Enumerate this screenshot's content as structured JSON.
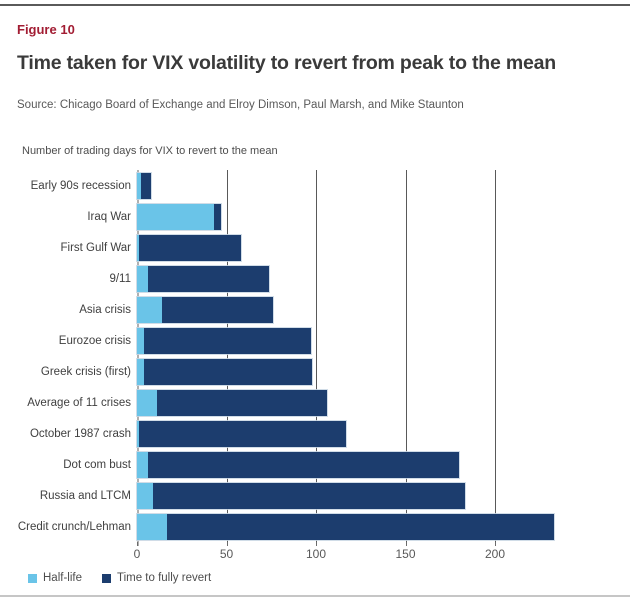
{
  "figure_label": "Figure 10",
  "title": "Time taken for VIX volatility to revert from peak to the mean",
  "source": "Source: Chicago Board of Exchange and Elroy Dimson, Paul Marsh, and Mike Staunton",
  "chart_data": {
    "type": "bar",
    "orientation": "horizontal",
    "overlay": true,
    "subtitle": "Number of trading days for VIX to revert to the mean",
    "categories": [
      "Early 90s recession",
      "Iraq War",
      "First Gulf War",
      "9/11",
      "Asia crisis",
      "Eurozoe crisis",
      "Greek crisis (first)",
      "Average of 11 crises",
      "October 1987 crash",
      "Dot com bust",
      "Russia and LTCM",
      "Credit crunch/Lehman"
    ],
    "series": [
      {
        "name": "Half-life",
        "color": "#6AC4E8",
        "values": [
          2,
          43,
          1,
          6,
          14,
          4,
          4,
          11,
          1,
          6,
          9,
          17
        ]
      },
      {
        "name": "Time to fully revert",
        "color": "#1C3D6E",
        "values": [
          8,
          47,
          58,
          74,
          76,
          97,
          98,
          106,
          117,
          180,
          183,
          233
        ]
      }
    ],
    "x_ticks": [
      0,
      50,
      100,
      150,
      200
    ],
    "xlim": [
      0,
      275
    ],
    "grid": "vertical",
    "legend_position": "bottom-left"
  },
  "legend": [
    {
      "label": "Half-life",
      "color": "#6AC4E8"
    },
    {
      "label": "Time to fully revert",
      "color": "#1C3D6E"
    }
  ],
  "colors": {
    "accent_red": "#A21D33",
    "navy": "#1C3D6E",
    "light_blue": "#6AC4E8",
    "title_text": "#3A3A3A",
    "muted_text": "#595959",
    "gridline": "#595959",
    "axis_line": "#B0B0B0"
  }
}
